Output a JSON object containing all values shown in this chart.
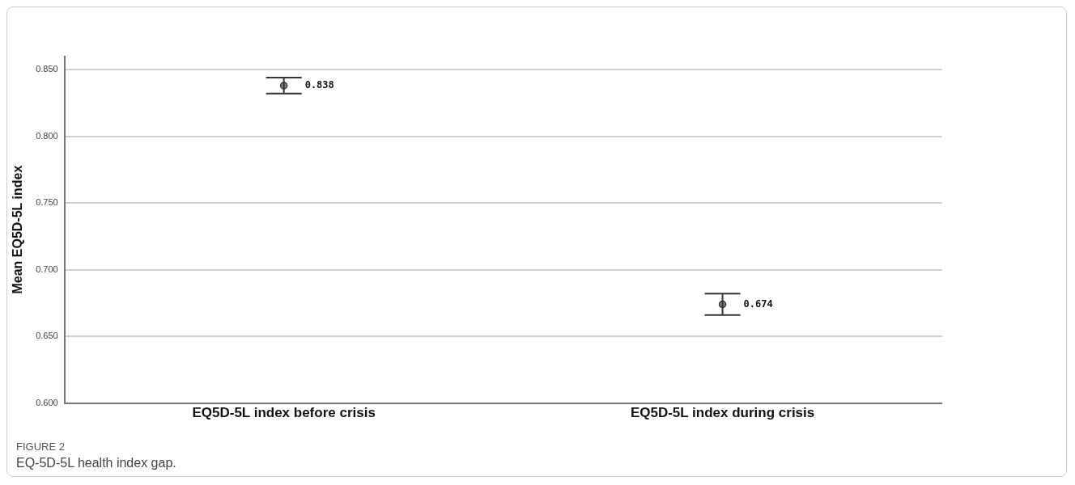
{
  "chart_data": {
    "type": "scatter",
    "ylabel": "Mean EQ5D-5L index",
    "categories": [
      "EQ5D-5L index before crisis",
      "EQ5D-5L index during crisis"
    ],
    "values": [
      0.838,
      0.674
    ],
    "errors": [
      0.006,
      0.008
    ],
    "color": "#333333",
    "data_labels": true,
    "ylim": [
      0.6,
      0.86
    ],
    "yticks": [
      {
        "value": 0.6,
        "label": "0.600"
      },
      {
        "value": 0.65,
        "label": "0.650"
      },
      {
        "value": 0.7,
        "label": "0.700"
      },
      {
        "value": 0.75,
        "label": "0.750"
      },
      {
        "value": 0.8,
        "label": "0.800"
      },
      {
        "value": 0.85,
        "label": "0.850"
      }
    ],
    "grid": "y",
    "legend": false,
    "marker": "circle",
    "annotations": [
      "FIGURE 2",
      "EQ-5D-5L health index gap."
    ]
  }
}
